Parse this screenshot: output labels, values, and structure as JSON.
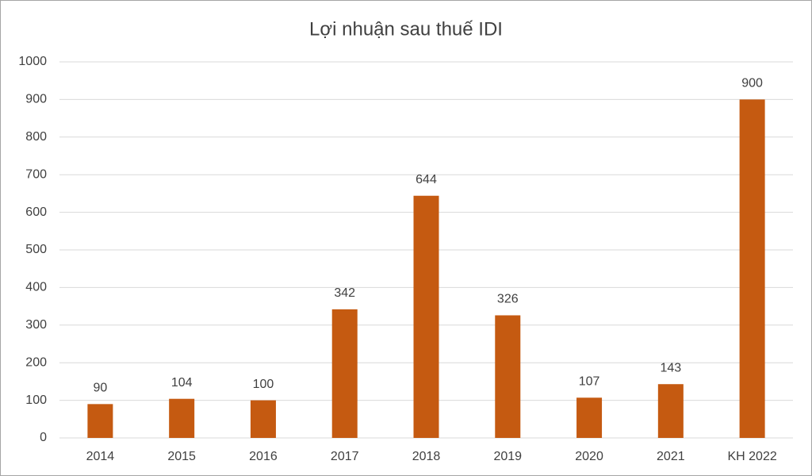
{
  "chart_data": {
    "type": "bar",
    "title": "Lợi nhuận sau thuế IDI",
    "categories": [
      "2014",
      "2015",
      "2016",
      "2017",
      "2018",
      "2019",
      "2020",
      "2021",
      "KH 2022"
    ],
    "values": [
      90,
      104,
      100,
      342,
      644,
      326,
      107,
      143,
      900
    ],
    "color": "#c55a11",
    "ylim": [
      0,
      1000
    ],
    "yticks": [
      0,
      100,
      200,
      300,
      400,
      500,
      600,
      700,
      800,
      900,
      1000
    ],
    "grid": true,
    "data_labels": true
  }
}
